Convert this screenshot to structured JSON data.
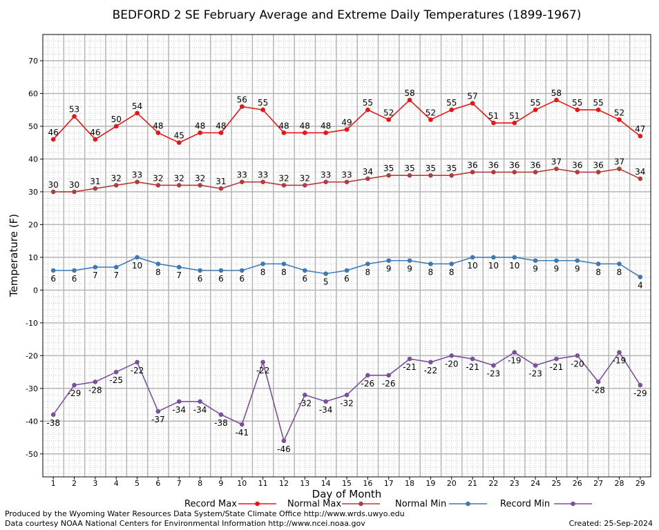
{
  "chart_data": {
    "type": "line",
    "title": "BEDFORD 2 SE February Average and Extreme Daily Temperatures (1899-1967)",
    "xlabel": "Day of Month",
    "ylabel": "Temperature (F)",
    "categories": [
      "1",
      "2",
      "3",
      "4",
      "5",
      "6",
      "7",
      "8",
      "9",
      "10",
      "11",
      "12",
      "13",
      "14",
      "15",
      "16",
      "17",
      "18",
      "19",
      "20",
      "21",
      "22",
      "23",
      "24",
      "25",
      "26",
      "27",
      "28",
      "29"
    ],
    "ylim": [
      -57,
      78
    ],
    "yticks": [
      -50,
      -40,
      -30,
      -20,
      -10,
      0,
      10,
      20,
      30,
      40,
      50,
      60,
      70
    ],
    "grid": true,
    "legend_position": "bottom",
    "series": [
      {
        "name": "Record Max",
        "color": "#ee1111",
        "label_position": "above",
        "values": [
          46,
          53,
          46,
          50,
          54,
          48,
          45,
          48,
          48,
          56,
          55,
          48,
          48,
          48,
          49,
          55,
          52,
          58,
          52,
          55,
          57,
          51,
          51,
          55,
          58,
          55,
          55,
          52,
          47
        ]
      },
      {
        "name": "Normal Max",
        "color": "#b03c3c",
        "label_position": "above",
        "values": [
          30,
          30,
          31,
          32,
          33,
          32,
          32,
          32,
          31,
          33,
          33,
          32,
          32,
          33,
          33,
          34,
          35,
          35,
          35,
          35,
          36,
          36,
          36,
          36,
          37,
          36,
          36,
          37,
          34
        ]
      },
      {
        "name": "Normal Min",
        "color": "#3c78b4",
        "label_position": "below",
        "values": [
          6,
          6,
          7,
          7,
          10,
          8,
          7,
          6,
          6,
          6,
          8,
          8,
          6,
          5,
          6,
          8,
          9,
          9,
          8,
          8,
          10,
          10,
          10,
          9,
          9,
          9,
          8,
          8,
          4
        ]
      },
      {
        "name": "Record Min",
        "color": "#7b4fa0",
        "label_position": "below",
        "values": [
          -38,
          -29,
          -28,
          -25,
          -22,
          -37,
          -34,
          -34,
          -38,
          -41,
          -22,
          -46,
          -32,
          -34,
          -32,
          -26,
          -26,
          -21,
          -22,
          -20,
          -21,
          -23,
          -19,
          -23,
          -21,
          -20,
          -28,
          -19,
          -29
        ]
      }
    ]
  },
  "footer": {
    "produced_by": "Produced by the Wyoming Water Resources Data System/State Climate Office http://www.wrds.uwyo.edu",
    "data_courtesy": "Data courtesy NOAA National Centers for Environmental Information http://www.ncei.noaa.gov",
    "created": "Created:  25-Sep-2024"
  }
}
